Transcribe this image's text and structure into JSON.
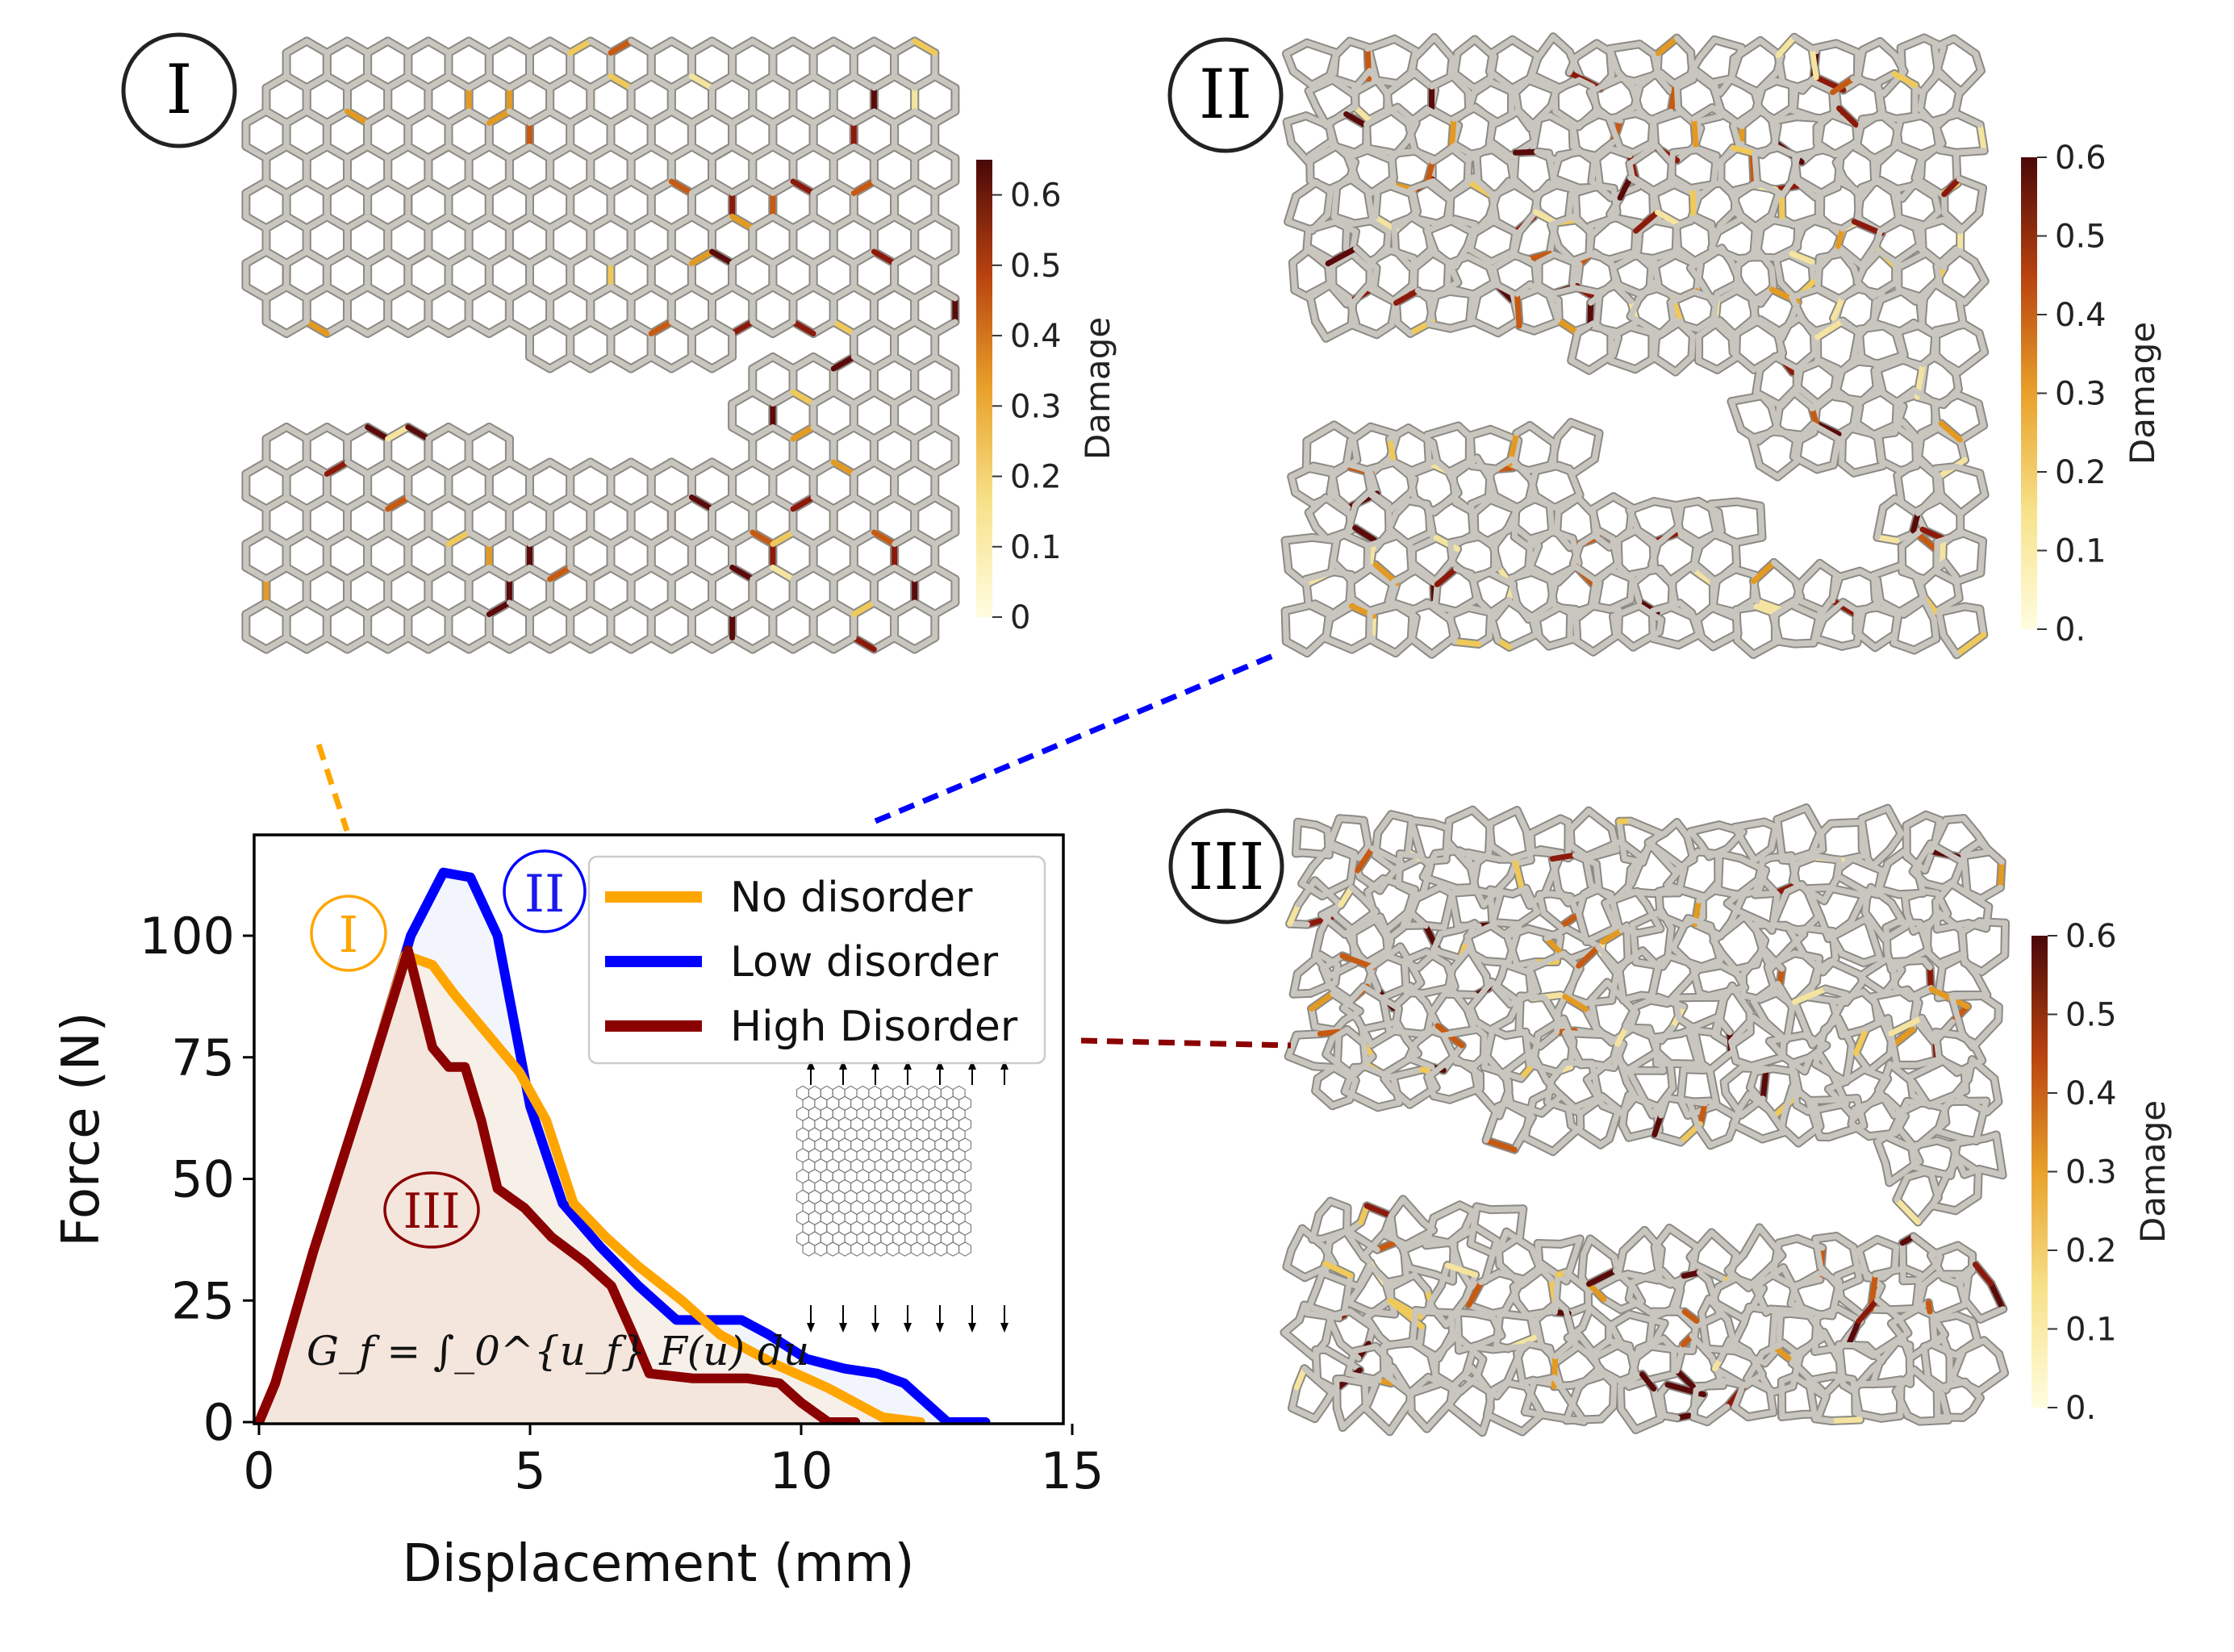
{
  "panels": [
    {
      "label": "I",
      "colorbar": {
        "title": "Damage",
        "ticks": [
          "0",
          "0.1",
          "0.2",
          "0.3",
          "0.4",
          "0.5",
          "0.6"
        ],
        "max": 0.65
      }
    },
    {
      "label": "II",
      "colorbar": {
        "title": "Damage",
        "ticks": [
          "0.",
          "0.1",
          "0.2",
          "0.3",
          "0.4",
          "0.5",
          "0.6"
        ],
        "max": 0.6
      }
    },
    {
      "label": "III",
      "colorbar": {
        "title": "Damage",
        "ticks": [
          "0.",
          "0.1",
          "0.2",
          "0.3",
          "0.4",
          "0.5",
          "0.6"
        ],
        "max": 0.6
      }
    }
  ],
  "colors": {
    "no_disorder": "#FFA500",
    "low_disorder": "#0000FF",
    "high_disorder": "#8B0000",
    "bond": "#c9c6bf",
    "damage_low": "#fffde0",
    "damage_mid": "#e69a1c",
    "damage_high": "#5a0a0a"
  },
  "chart_data": {
    "type": "line",
    "xlabel": "Displacement (mm)",
    "ylabel": "Force (N)",
    "xlim": [
      0,
      15
    ],
    "ylim": [
      0,
      120
    ],
    "xticks": [
      "0",
      "5",
      "10",
      "15"
    ],
    "yticks": [
      "0",
      "25",
      "50",
      "75",
      "100"
    ],
    "grid": false,
    "legend": "top-right",
    "series": [
      {
        "name": "No disorder",
        "color": "#FFA500",
        "marker": "I",
        "x": [
          0,
          0.3,
          1.0,
          2.0,
          2.7,
          3.2,
          3.6,
          4.2,
          4.8,
          5.3,
          5.8,
          6.4,
          7.0,
          7.8,
          8.5,
          9.5,
          10.5,
          11.0,
          11.5,
          12.2
        ],
        "y": [
          0,
          8,
          35,
          70,
          96,
          94,
          88,
          80,
          72,
          62,
          45,
          38,
          32,
          25,
          18,
          12,
          7,
          4,
          1,
          0
        ]
      },
      {
        "name": "Low disorder",
        "color": "#0000FF",
        "marker": "II",
        "x": [
          0,
          0.3,
          1.0,
          2.0,
          2.8,
          3.4,
          3.9,
          4.4,
          5.0,
          5.6,
          6.3,
          7.0,
          7.7,
          8.3,
          8.9,
          9.4,
          10.1,
          10.8,
          11.4,
          11.9,
          12.3,
          12.7,
          13.4
        ],
        "y": [
          0,
          8,
          35,
          70,
          100,
          113,
          112,
          100,
          65,
          45,
          36,
          28,
          21,
          21,
          21,
          18,
          13,
          11,
          10,
          8,
          4,
          0,
          0
        ]
      },
      {
        "name": "High Disorder",
        "color": "#8B0000",
        "marker": "III",
        "x": [
          0,
          0.3,
          1.0,
          2.0,
          2.75,
          3.2,
          3.5,
          3.8,
          4.1,
          4.4,
          4.9,
          5.4,
          6.0,
          6.5,
          6.9,
          7.2,
          8.0,
          9.0,
          9.6,
          10.0,
          10.5,
          11.0
        ],
        "y": [
          0,
          8,
          35,
          70,
          97,
          77,
          73,
          73,
          62,
          48,
          44,
          38,
          33,
          28,
          18,
          10,
          9,
          9,
          8,
          4,
          0,
          0
        ]
      }
    ],
    "annotation": "G_f = ∫_0^{u_f} F(u) du"
  }
}
